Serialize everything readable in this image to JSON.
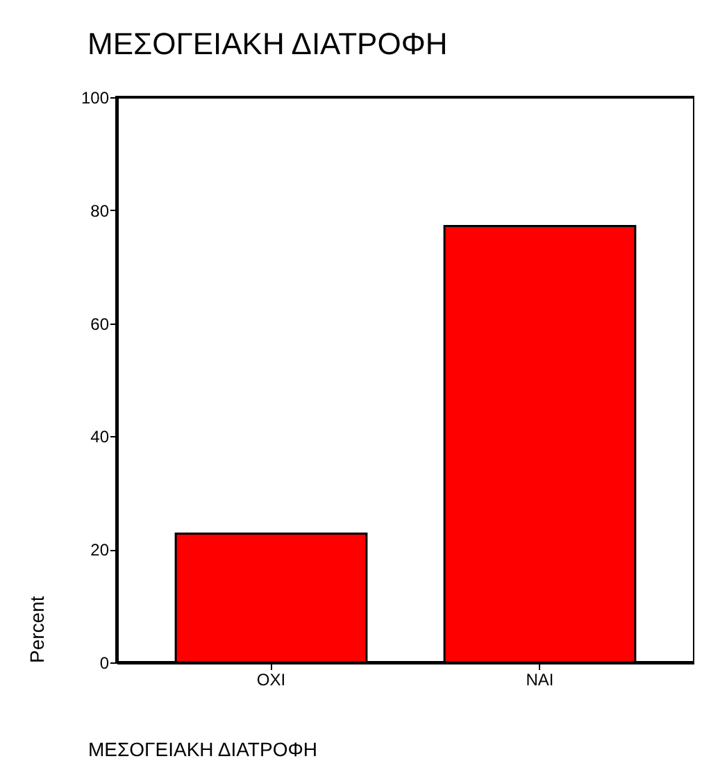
{
  "chart_data": {
    "type": "bar",
    "title": "ΜΕΣΟΓΕΙΑΚΗ ΔΙΑΤΡΟΦΗ",
    "xlabel": "ΜΕΣΟΓΕΙΑΚΗ ΔΙΑΤΡΟΦΗ",
    "ylabel": "Percent",
    "categories": [
      "OXI",
      "NAI"
    ],
    "values": [
      22.8,
      77.2
    ],
    "color": "#ff0000",
    "ylim": [
      0,
      100
    ],
    "yticks": [
      0,
      20,
      40,
      60,
      80,
      100
    ],
    "grid": false
  }
}
